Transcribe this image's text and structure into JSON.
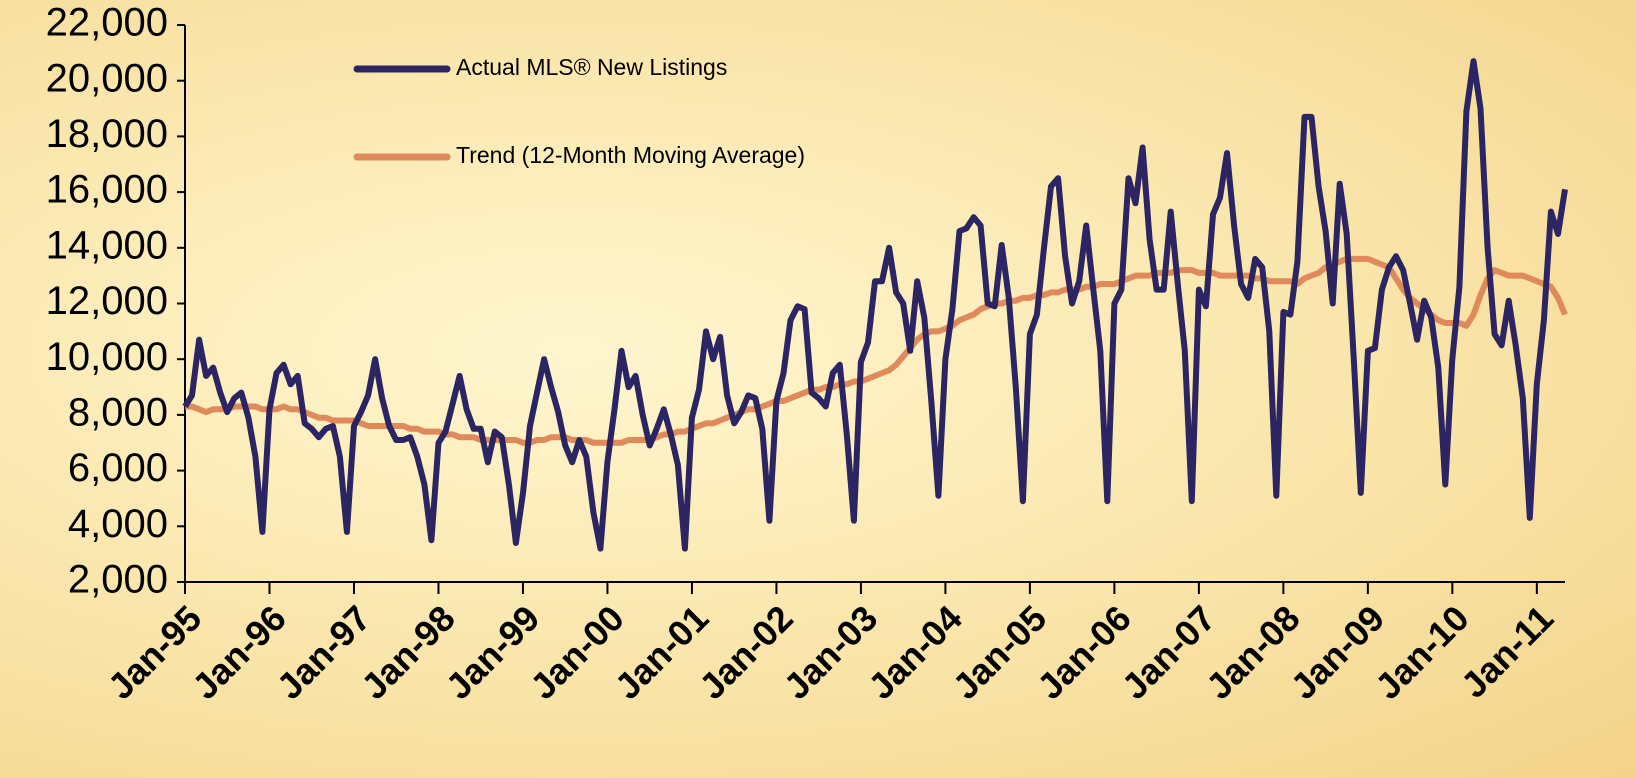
{
  "chart_data": {
    "type": "line",
    "categories": [
      "Jan-95",
      null,
      null,
      null,
      null,
      null,
      null,
      null,
      null,
      null,
      null,
      null,
      "Jan-96",
      null,
      null,
      null,
      null,
      null,
      null,
      null,
      null,
      null,
      null,
      null,
      "Jan-97",
      null,
      null,
      null,
      null,
      null,
      null,
      null,
      null,
      null,
      null,
      null,
      "Jan-98",
      null,
      null,
      null,
      null,
      null,
      null,
      null,
      null,
      null,
      null,
      null,
      "Jan-99",
      null,
      null,
      null,
      null,
      null,
      null,
      null,
      null,
      null,
      null,
      null,
      "Jan-00",
      null,
      null,
      null,
      null,
      null,
      null,
      null,
      null,
      null,
      null,
      null,
      "Jan-01",
      null,
      null,
      null,
      null,
      null,
      null,
      null,
      null,
      null,
      null,
      null,
      "Jan-02",
      null,
      null,
      null,
      null,
      null,
      null,
      null,
      null,
      null,
      null,
      null,
      "Jan-03",
      null,
      null,
      null,
      null,
      null,
      null,
      null,
      null,
      null,
      null,
      null,
      "Jan-04",
      null,
      null,
      null,
      null,
      null,
      null,
      null,
      null,
      null,
      null,
      null,
      "Jan-05",
      null,
      null,
      null,
      null,
      null,
      null,
      null,
      null,
      null,
      null,
      null,
      "Jan-06",
      null,
      null,
      null,
      null,
      null,
      null,
      null,
      null,
      null,
      null,
      null,
      "Jan-07",
      null,
      null,
      null,
      null,
      null,
      null,
      null,
      null,
      null,
      null,
      null,
      "Jan-08",
      null,
      null,
      null,
      null,
      null,
      null,
      null,
      null,
      null,
      null,
      null,
      "Jan-09",
      null,
      null,
      null,
      null,
      null,
      null,
      null,
      null,
      null,
      null,
      null,
      "Jan-10",
      null,
      null,
      null,
      null,
      null,
      null,
      null,
      null,
      null,
      null,
      null,
      "Jan-11",
      null,
      null,
      null,
      null
    ],
    "series": [
      {
        "name": "Actual MLS® New Listings",
        "color": "#2b2563",
        "values": [
          8300,
          8700,
          10700,
          9400,
          9700,
          8800,
          8100,
          8600,
          8800,
          7900,
          6500,
          3800,
          8200,
          9500,
          9800,
          9100,
          9400,
          7700,
          7500,
          7200,
          7500,
          7600,
          6500,
          3800,
          7600,
          8100,
          8700,
          10000,
          8600,
          7600,
          7100,
          7100,
          7200,
          6500,
          5500,
          3500,
          7000,
          7400,
          8400,
          9400,
          8200,
          7500,
          7500,
          6300,
          7400,
          7200,
          5500,
          3400,
          5200,
          7600,
          8800,
          10000,
          9000,
          8100,
          6900,
          6300,
          7100,
          6500,
          4500,
          3200,
          6300,
          8200,
          10300,
          9000,
          9400,
          8000,
          6900,
          7500,
          8200,
          7300,
          6200,
          3200,
          7900,
          8900,
          11000,
          10000,
          10800,
          8700,
          7700,
          8100,
          8700,
          8600,
          7500,
          4200,
          8500,
          9500,
          11400,
          11900,
          11800,
          8800,
          8600,
          8300,
          9500,
          9800,
          7300,
          4200,
          9900,
          10600,
          12800,
          12800,
          14000,
          12400,
          12000,
          10300,
          12800,
          11500,
          8500,
          5100,
          10000,
          11800,
          14600,
          14700,
          15100,
          14800,
          12000,
          11900,
          14100,
          12200,
          9000,
          4900,
          10900,
          11600,
          14000,
          16200,
          16500,
          13700,
          12000,
          12800,
          14800,
          12500,
          10300,
          4900,
          12000,
          12500,
          16500,
          15600,
          17600,
          14300,
          12500,
          12500,
          15300,
          12700,
          10300,
          4900,
          12500,
          11900,
          15200,
          15800,
          17400,
          14800,
          12700,
          12200,
          13600,
          13300,
          11000,
          5100,
          11700,
          11600,
          13500,
          18700,
          18700,
          16200,
          14600,
          12000,
          16300,
          14500,
          10000,
          5200,
          10300,
          10400,
          12500,
          13300,
          13700,
          13200,
          12000,
          10700,
          12100,
          11500,
          9700,
          5500,
          10000,
          12600,
          18900,
          20700,
          19000,
          14000,
          10900,
          10500,
          12100,
          10500,
          8600,
          4300,
          9100,
          11400,
          15300,
          14500,
          16100
        ]
      },
      {
        "name": "Trend (12-Month Moving Average)",
        "color": "#e0895a",
        "values": [
          8300,
          8300,
          8200,
          8100,
          8200,
          8200,
          8200,
          8300,
          8300,
          8300,
          8300,
          8200,
          8200,
          8200,
          8300,
          8200,
          8200,
          8100,
          8000,
          7900,
          7900,
          7800,
          7800,
          7800,
          7800,
          7700,
          7600,
          7600,
          7600,
          7600,
          7600,
          7600,
          7500,
          7500,
          7400,
          7400,
          7400,
          7300,
          7300,
          7200,
          7200,
          7200,
          7100,
          7100,
          7100,
          7100,
          7100,
          7100,
          7000,
          7000,
          7100,
          7100,
          7200,
          7200,
          7200,
          7100,
          7100,
          7100,
          7000,
          7000,
          7000,
          7000,
          7000,
          7100,
          7100,
          7100,
          7100,
          7200,
          7300,
          7300,
          7400,
          7400,
          7500,
          7600,
          7700,
          7700,
          7800,
          7900,
          8000,
          8100,
          8200,
          8200,
          8300,
          8400,
          8500,
          8500,
          8600,
          8700,
          8800,
          8900,
          8900,
          9000,
          9000,
          9100,
          9100,
          9200,
          9200,
          9300,
          9400,
          9500,
          9600,
          9800,
          10100,
          10400,
          10700,
          10900,
          11000,
          11000,
          11100,
          11200,
          11400,
          11500,
          11600,
          11800,
          11900,
          12000,
          12000,
          12100,
          12100,
          12200,
          12200,
          12300,
          12300,
          12400,
          12400,
          12500,
          12500,
          12500,
          12600,
          12600,
          12700,
          12700,
          12700,
          12800,
          12900,
          13000,
          13000,
          13000,
          13100,
          13100,
          13100,
          13200,
          13200,
          13200,
          13100,
          13100,
          13100,
          13000,
          13000,
          13000,
          13000,
          13000,
          12900,
          12900,
          12800,
          12800,
          12800,
          12800,
          12700,
          12900,
          13000,
          13100,
          13300,
          13400,
          13500,
          13600,
          13600,
          13600,
          13600,
          13500,
          13400,
          13300,
          12900,
          12500,
          12200,
          12000,
          11800,
          11600,
          11400,
          11300,
          11300,
          11300,
          11200,
          11600,
          12300,
          12900,
          13200,
          13100,
          13000,
          13000,
          13000,
          12900,
          12800,
          12700,
          12600,
          12200,
          11600
        ]
      }
    ],
    "ylim": [
      2000,
      22000
    ],
    "yticks": [
      {
        "value": 2000,
        "label": "2,000"
      },
      {
        "value": 4000,
        "label": "4,000"
      },
      {
        "value": 6000,
        "label": "6,000"
      },
      {
        "value": 8000,
        "label": "8,000"
      },
      {
        "value": 10000,
        "label": "10,000"
      },
      {
        "value": 12000,
        "label": "12,000"
      },
      {
        "value": 14000,
        "label": "14,000"
      },
      {
        "value": 16000,
        "label": "16,000"
      },
      {
        "value": 18000,
        "label": "18,000"
      },
      {
        "value": 20000,
        "label": "20,000"
      },
      {
        "value": 22000,
        "label": "22,000"
      }
    ],
    "grid": false,
    "legend": "upper left"
  }
}
